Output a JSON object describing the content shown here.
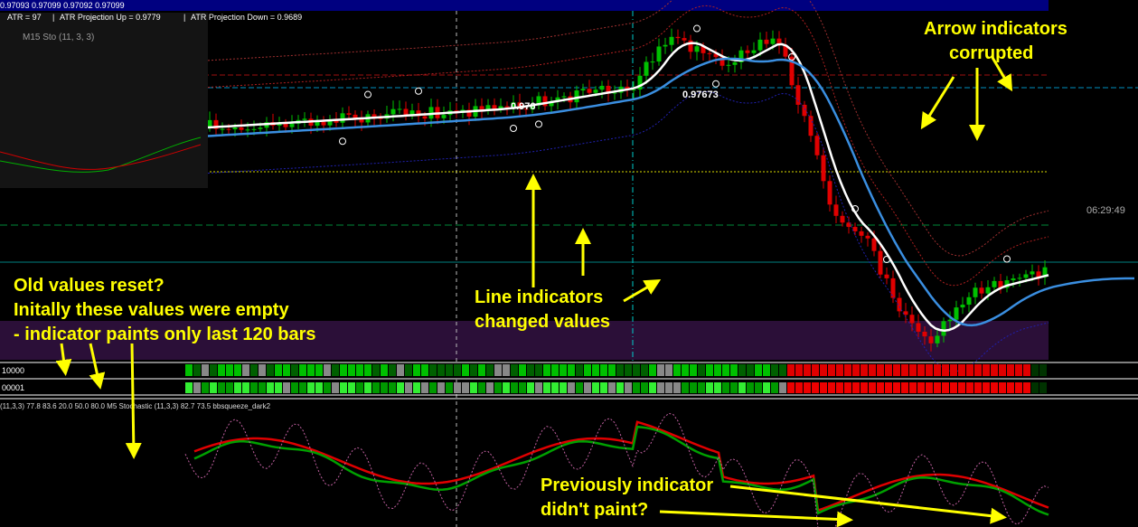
{
  "header": {
    "quote": "0.97093 0.97099 0.97092 0.97099",
    "atr": [
      "ATR = 97",
      "ATR Projection Up = 0.9779",
      "ATR Projection Down = 0.9689"
    ]
  },
  "inset": {
    "title": "M15 Sto (11, 3, 3)"
  },
  "price_labels": [
    "0.976",
    "0.97673"
  ],
  "clock": "06:29:49",
  "annotations": {
    "arrows": [
      "Arrow indicators",
      "corrupted"
    ],
    "reset": [
      "Old values reset?",
      "Initally these values were empty",
      "- indicator paints only last 120 bars"
    ],
    "lines": [
      "Line indicators",
      "changed values"
    ],
    "paint": [
      "Previously indicator",
      "didn't paint?"
    ]
  },
  "rows": [
    "10000",
    "00001"
  ],
  "subwindow": {
    "label": "(11,3,3) 77.8 83.6 20.0 50.0 80.0  M5 Stochastic (11,3,3) 82.7 73.5  bbsqueeze_dark2"
  }
}
